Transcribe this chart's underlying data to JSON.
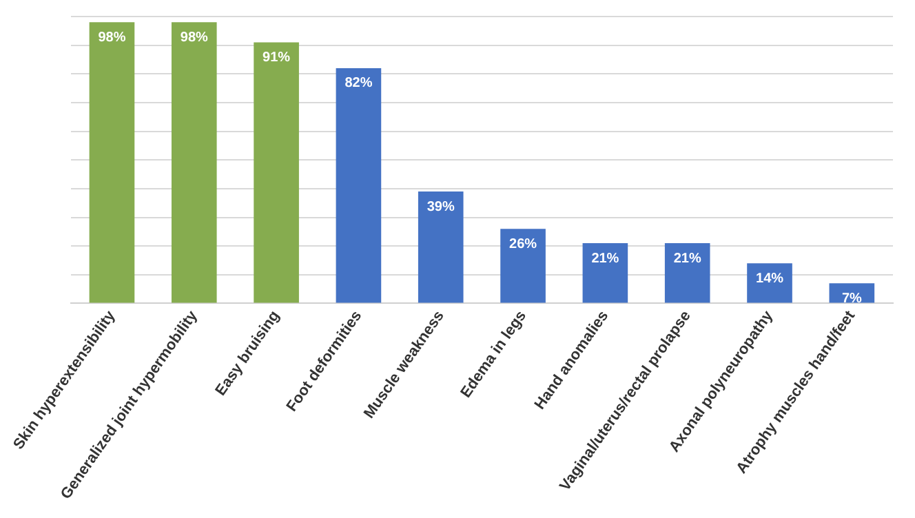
{
  "chart_data": {
    "type": "bar",
    "categories": [
      "Skin hyperextensibility",
      "Generalized joint hypermobility",
      "Easy bruising",
      "Foot deformities",
      "Muscle weakness",
      "Edema in legs",
      "Hand anomalies",
      "Vaginal/uterus/rectal prolapse",
      "Axonal polyneuropathy",
      "Atrophy muscles hand/feet"
    ],
    "values": [
      98,
      98,
      91,
      82,
      39,
      26,
      21,
      21,
      14,
      7
    ],
    "colors": [
      "#86ac4f",
      "#86ac4f",
      "#86ac4f",
      "#4472c4",
      "#4472c4",
      "#4472c4",
      "#4472c4",
      "#4472c4",
      "#4472c4",
      "#4472c4"
    ],
    "value_labels": [
      "98%",
      "98%",
      "91%",
      "82%",
      "39%",
      "26%",
      "21%",
      "21%",
      "14%",
      "7%"
    ],
    "ylim": [
      0,
      100
    ],
    "yticks": [
      {
        "value": 0,
        "label": null
      },
      {
        "value": 10,
        "label": null
      },
      {
        "value": 20,
        "label": null
      },
      {
        "value": 30,
        "label": null
      },
      {
        "value": 40,
        "label": null
      },
      {
        "value": 50,
        "label": null
      },
      {
        "value": 60,
        "label": null
      },
      {
        "value": 70,
        "label": null
      },
      {
        "value": 80,
        "label": null
      },
      {
        "value": 90,
        "label": null
      },
      {
        "value": 100,
        "label": null
      }
    ],
    "grid": "y",
    "tick_labels": "x"
  }
}
